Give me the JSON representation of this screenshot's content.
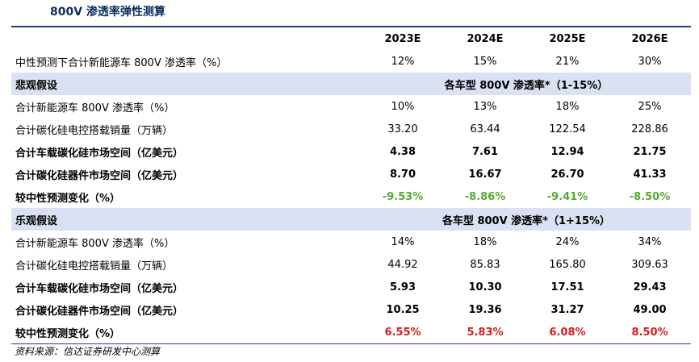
{
  "title": "800V 渗透率弹性测算",
  "years": [
    "2023E",
    "2024E",
    "2025E",
    "2026E"
  ],
  "neutral": {
    "label": "中性预测下合计新能源车 800V 渗透率（%）",
    "values": [
      "12%",
      "15%",
      "21%",
      "30%"
    ]
  },
  "pessimistic": {
    "header": "悲观假设",
    "assumption": "各车型 800V 渗透率*（1-15%）",
    "rows": [
      {
        "label": "合计新能源车 800V 渗透率（%）",
        "values": [
          "10%",
          "13%",
          "18%",
          "25%"
        ]
      },
      {
        "label": "合计碳化硅电控搭载销量（万辆）",
        "values": [
          "33.20",
          "63.44",
          "122.54",
          "228.86"
        ]
      },
      {
        "label": "合计车载碳化硅市场空间（亿美元）",
        "values": [
          "4.38",
          "7.61",
          "12.94",
          "21.75"
        ]
      },
      {
        "label": "合计碳化硅器件市场空间（亿美元）",
        "values": [
          "8.70",
          "16.67",
          "26.70",
          "41.33"
        ]
      },
      {
        "label": "较中性预测变化（%）",
        "values": [
          "-9.53%",
          "-8.86%",
          "-9.41%",
          "-8.50%"
        ]
      }
    ]
  },
  "optimistic": {
    "header": "乐观假设",
    "assumption": "各车型 800V 渗透率*（1+15%）",
    "rows": [
      {
        "label": "合计新能源车 800V 渗透率（%）",
        "values": [
          "14%",
          "18%",
          "24%",
          "34%"
        ]
      },
      {
        "label": "合计碳化硅电控搭载销量（万辆）",
        "values": [
          "44.92",
          "85.83",
          "165.80",
          "309.63"
        ]
      },
      {
        "label": "合计车载碳化硅市场空间（亿美元）",
        "values": [
          "5.93",
          "10.30",
          "17.51",
          "29.43"
        ]
      },
      {
        "label": "合计碳化硅器件市场空间（亿美元）",
        "values": [
          "10.25",
          "19.36",
          "31.27",
          "49.00"
        ]
      },
      {
        "label": "较中性预测变化（%）",
        "values": [
          "6.55%",
          "5.83%",
          "6.08%",
          "8.50%"
        ]
      }
    ]
  },
  "colors": {
    "negative_change": "#57a833",
    "positive_change": "#d21e1e",
    "section_bg": "#d9e1f2",
    "rule": "#1f3f77"
  },
  "source": "资料来源：信达证券研发中心测算"
}
